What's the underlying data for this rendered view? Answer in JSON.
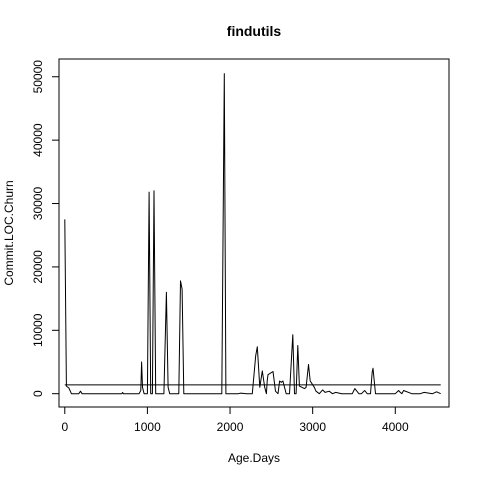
{
  "chart_data": {
    "type": "line",
    "title": "findutils",
    "xlabel": "Age.Days",
    "ylabel": "Commit.LOC.Churn",
    "xlim": [
      -70,
      4650
    ],
    "ylim": [
      -2100,
      52800
    ],
    "x_ticks": [
      0,
      1000,
      2000,
      3000,
      4000
    ],
    "y_ticks": [
      0,
      10000,
      20000,
      30000,
      40000,
      50000
    ],
    "grid": false,
    "legend": "none",
    "line_color": "#000000",
    "series": [
      {
        "x": [
          0,
          20,
          50,
          80,
          120,
          170,
          190,
          210,
          300,
          500,
          690,
          700,
          710,
          900,
          920,
          930,
          940,
          960,
          1000,
          1020,
          1040,
          1060,
          1080,
          1100,
          1120,
          1200,
          1230,
          1250,
          1270,
          1300,
          1380,
          1400,
          1420,
          1440,
          1900,
          1930,
          1950,
          2000,
          2100,
          2130,
          2200,
          2270,
          2310,
          2330,
          2360,
          2390,
          2420,
          2440,
          2450,
          2460,
          2520,
          2550,
          2580,
          2600,
          2620,
          2640,
          2680,
          2720,
          2760,
          2780,
          2800,
          2820,
          2840,
          2870,
          2900,
          2920,
          2950,
          2970,
          3000,
          3020,
          3040,
          3080,
          3120,
          3150,
          3200,
          3240,
          3280,
          3350,
          3480,
          3510,
          3560,
          3590,
          3630,
          3660,
          3700,
          3720,
          3730,
          3760,
          3800,
          3900,
          3950,
          4000,
          4040,
          4060,
          4080,
          4100,
          4200,
          4300,
          4350,
          4450,
          4500,
          4550
        ],
        "values": [
          27500,
          1200,
          900,
          0,
          0,
          0,
          400,
          0,
          0,
          0,
          0,
          200,
          0,
          0,
          500,
          5000,
          1000,
          0,
          0,
          31800,
          0,
          0,
          32000,
          0,
          0,
          0,
          16000,
          1000,
          0,
          0,
          0,
          17800,
          16500,
          0,
          0,
          50500,
          0,
          0,
          0,
          100,
          0,
          0,
          6000,
          7400,
          1000,
          3600,
          1000,
          0,
          2000,
          3000,
          3500,
          400,
          0,
          2000,
          1800,
          2000,
          0,
          0,
          9300,
          0,
          0,
          7600,
          1200,
          1000,
          800,
          1000,
          4600,
          2000,
          1400,
          1000,
          400,
          0,
          600,
          200,
          400,
          0,
          200,
          0,
          0,
          800,
          0,
          0,
          500,
          0,
          0,
          3400,
          4000,
          0,
          0,
          0,
          0,
          0,
          500,
          200,
          0,
          500,
          0,
          0,
          200,
          0,
          300,
          0
        ]
      }
    ],
    "reference_line": {
      "y": 1400,
      "x_from": 0,
      "x_to": 4550
    }
  }
}
